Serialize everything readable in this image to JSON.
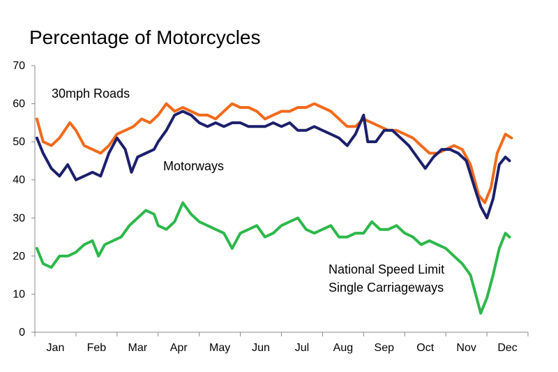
{
  "chart_data": {
    "type": "line",
    "title": "Percentage of Motorcycles",
    "xlabel": "",
    "ylabel": "",
    "ylim": [
      0,
      70
    ],
    "y_ticks": [
      0,
      10,
      20,
      30,
      40,
      50,
      60,
      70
    ],
    "x_tick_labels": [
      "Jan",
      "Feb",
      "Mar",
      "Apr",
      "May",
      "Jun",
      "Jul",
      "Aug",
      "Sep",
      "Oct",
      "Nov",
      "Dec"
    ],
    "x_unit": "month",
    "xlim": [
      0,
      12
    ],
    "grid": false,
    "legend": "none (series labelled by annotations on the plot)",
    "series": [
      {
        "name": "30mph Roads",
        "color": "#f26a1b",
        "points": [
          [
            0.05,
            56
          ],
          [
            0.2,
            50
          ],
          [
            0.4,
            49
          ],
          [
            0.6,
            51
          ],
          [
            0.85,
            55
          ],
          [
            1.0,
            53
          ],
          [
            1.2,
            49
          ],
          [
            1.4,
            48
          ],
          [
            1.6,
            47
          ],
          [
            1.8,
            49
          ],
          [
            2.0,
            52
          ],
          [
            2.2,
            53
          ],
          [
            2.4,
            54
          ],
          [
            2.6,
            56
          ],
          [
            2.8,
            55
          ],
          [
            3.0,
            57
          ],
          [
            3.2,
            60
          ],
          [
            3.4,
            58
          ],
          [
            3.6,
            59
          ],
          [
            3.8,
            58
          ],
          [
            4.0,
            57
          ],
          [
            4.2,
            57
          ],
          [
            4.4,
            56
          ],
          [
            4.6,
            58
          ],
          [
            4.8,
            60
          ],
          [
            5.0,
            59
          ],
          [
            5.2,
            59
          ],
          [
            5.4,
            58
          ],
          [
            5.6,
            56
          ],
          [
            5.8,
            57
          ],
          [
            6.0,
            58
          ],
          [
            6.2,
            58
          ],
          [
            6.4,
            59
          ],
          [
            6.6,
            59
          ],
          [
            6.8,
            60
          ],
          [
            7.0,
            59
          ],
          [
            7.2,
            58
          ],
          [
            7.4,
            56
          ],
          [
            7.6,
            54
          ],
          [
            7.8,
            54
          ],
          [
            8.0,
            56
          ],
          [
            8.2,
            55
          ],
          [
            8.4,
            54
          ],
          [
            8.6,
            53
          ],
          [
            8.8,
            53
          ],
          [
            9.0,
            52
          ],
          [
            9.2,
            51
          ],
          [
            9.4,
            49
          ],
          [
            9.6,
            47
          ],
          [
            9.8,
            47
          ],
          [
            10.0,
            48
          ],
          [
            10.2,
            49
          ],
          [
            10.4,
            48
          ],
          [
            10.6,
            44
          ],
          [
            10.8,
            36
          ],
          [
            10.95,
            34
          ],
          [
            11.1,
            38
          ],
          [
            11.25,
            47
          ],
          [
            11.45,
            52
          ],
          [
            11.6,
            51
          ]
        ]
      },
      {
        "name": "Motorways",
        "color": "#1c1f6b",
        "points": [
          [
            0.05,
            51
          ],
          [
            0.2,
            47
          ],
          [
            0.4,
            43
          ],
          [
            0.6,
            41
          ],
          [
            0.8,
            44
          ],
          [
            1.0,
            40
          ],
          [
            1.2,
            41
          ],
          [
            1.4,
            42
          ],
          [
            1.6,
            41
          ],
          [
            1.8,
            47
          ],
          [
            2.0,
            51
          ],
          [
            2.2,
            48
          ],
          [
            2.35,
            42
          ],
          [
            2.5,
            46
          ],
          [
            2.7,
            47
          ],
          [
            2.9,
            48
          ],
          [
            3.0,
            50
          ],
          [
            3.2,
            53
          ],
          [
            3.4,
            57
          ],
          [
            3.6,
            58
          ],
          [
            3.8,
            57
          ],
          [
            4.0,
            55
          ],
          [
            4.2,
            54
          ],
          [
            4.4,
            55
          ],
          [
            4.6,
            54
          ],
          [
            4.8,
            55
          ],
          [
            5.0,
            55
          ],
          [
            5.2,
            54
          ],
          [
            5.4,
            54
          ],
          [
            5.6,
            54
          ],
          [
            5.8,
            55
          ],
          [
            6.0,
            54
          ],
          [
            6.2,
            55
          ],
          [
            6.4,
            53
          ],
          [
            6.6,
            53
          ],
          [
            6.8,
            54
          ],
          [
            7.0,
            53
          ],
          [
            7.2,
            52
          ],
          [
            7.4,
            51
          ],
          [
            7.6,
            49
          ],
          [
            7.8,
            52
          ],
          [
            8.0,
            57
          ],
          [
            8.1,
            50
          ],
          [
            8.3,
            50
          ],
          [
            8.5,
            53
          ],
          [
            8.7,
            53
          ],
          [
            8.9,
            51
          ],
          [
            9.1,
            49
          ],
          [
            9.3,
            46
          ],
          [
            9.5,
            43
          ],
          [
            9.7,
            46
          ],
          [
            9.9,
            48
          ],
          [
            10.1,
            48
          ],
          [
            10.3,
            47
          ],
          [
            10.5,
            45
          ],
          [
            10.7,
            38
          ],
          [
            10.85,
            33
          ],
          [
            11.0,
            30
          ],
          [
            11.15,
            35
          ],
          [
            11.3,
            44
          ],
          [
            11.45,
            46
          ],
          [
            11.55,
            45
          ]
        ]
      },
      {
        "name": "National Speed Limit Single Carriageways",
        "color": "#2db84b",
        "points": [
          [
            0.05,
            22
          ],
          [
            0.2,
            18
          ],
          [
            0.4,
            17
          ],
          [
            0.6,
            20
          ],
          [
            0.8,
            20
          ],
          [
            1.0,
            21
          ],
          [
            1.2,
            23
          ],
          [
            1.4,
            24
          ],
          [
            1.55,
            20
          ],
          [
            1.7,
            23
          ],
          [
            1.9,
            24
          ],
          [
            2.1,
            25
          ],
          [
            2.3,
            28
          ],
          [
            2.5,
            30
          ],
          [
            2.7,
            32
          ],
          [
            2.9,
            31
          ],
          [
            3.0,
            28
          ],
          [
            3.2,
            27
          ],
          [
            3.4,
            29
          ],
          [
            3.6,
            34
          ],
          [
            3.8,
            31
          ],
          [
            4.0,
            29
          ],
          [
            4.2,
            28
          ],
          [
            4.4,
            27
          ],
          [
            4.6,
            26
          ],
          [
            4.8,
            22
          ],
          [
            5.0,
            26
          ],
          [
            5.2,
            27
          ],
          [
            5.4,
            28
          ],
          [
            5.6,
            25
          ],
          [
            5.8,
            26
          ],
          [
            6.0,
            28
          ],
          [
            6.2,
            29
          ],
          [
            6.4,
            30
          ],
          [
            6.6,
            27
          ],
          [
            6.8,
            26
          ],
          [
            7.0,
            27
          ],
          [
            7.2,
            28
          ],
          [
            7.4,
            25
          ],
          [
            7.6,
            25
          ],
          [
            7.8,
            26
          ],
          [
            8.0,
            26
          ],
          [
            8.2,
            29
          ],
          [
            8.4,
            27
          ],
          [
            8.6,
            27
          ],
          [
            8.8,
            28
          ],
          [
            9.0,
            26
          ],
          [
            9.2,
            25
          ],
          [
            9.4,
            23
          ],
          [
            9.6,
            24
          ],
          [
            9.8,
            23
          ],
          [
            10.0,
            22
          ],
          [
            10.2,
            20
          ],
          [
            10.4,
            18
          ],
          [
            10.6,
            15
          ],
          [
            10.75,
            9
          ],
          [
            10.85,
            5
          ],
          [
            11.0,
            9
          ],
          [
            11.15,
            15
          ],
          [
            11.3,
            22
          ],
          [
            11.45,
            26
          ],
          [
            11.55,
            25
          ]
        ]
      }
    ],
    "annotations": [
      {
        "text": "30mph Roads"
      },
      {
        "text": "Motorways"
      },
      {
        "text": "National Speed Limit"
      },
      {
        "text": "Single Carriageways"
      }
    ]
  }
}
